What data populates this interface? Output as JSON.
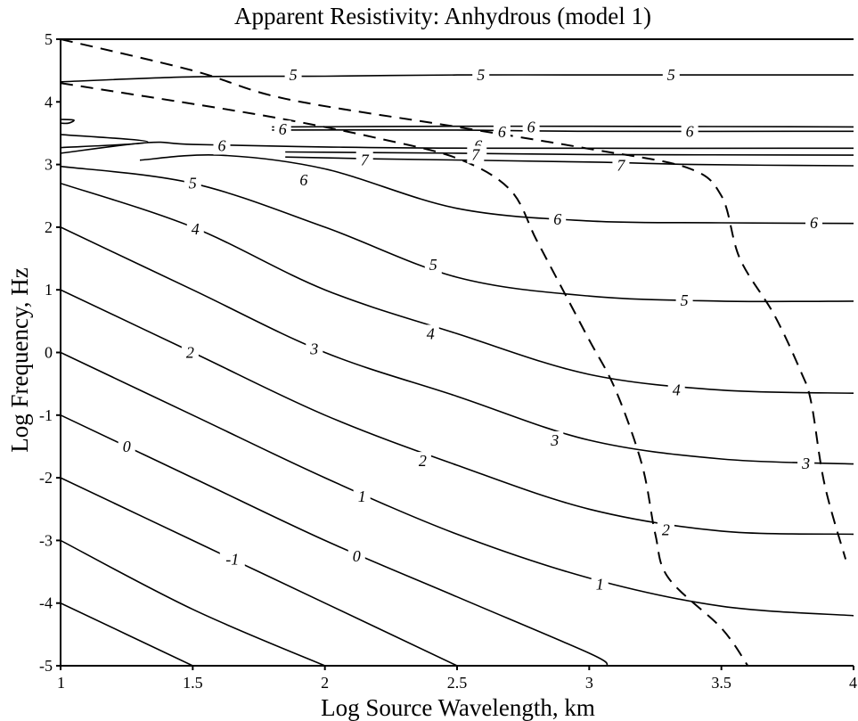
{
  "chart_data": {
    "type": "contour",
    "title": "Apparent Resistivity: Anhydrous (model 1)",
    "xlabel": "Log Source Wavelength, km",
    "ylabel": "Log Frequency, Hz",
    "xlim": [
      1,
      4
    ],
    "ylim": [
      -5,
      5
    ],
    "xticks": [
      1,
      1.5,
      2,
      2.5,
      3,
      3.5,
      4
    ],
    "xtick_labels": [
      "1",
      "1.5",
      "2",
      "2.5",
      "3",
      "3.5",
      "4"
    ],
    "yticks": [
      5,
      4,
      3,
      2,
      1,
      0,
      -1,
      -2,
      -3,
      -4,
      -5
    ],
    "ytick_labels": [
      "5",
      "4",
      "3",
      "2",
      "1",
      "0",
      "-1",
      "-2",
      "-3",
      "-4",
      "-5"
    ],
    "grid": false,
    "contours": [
      {
        "level": "-1",
        "points": [
          [
            1,
            -4
          ],
          [
            1.5,
            -5
          ]
        ]
      },
      {
        "level": "-1",
        "points": [
          [
            1,
            -3
          ],
          [
            1.5,
            -4.1
          ],
          [
            2,
            -5
          ]
        ]
      },
      {
        "level": "-1",
        "points": [
          [
            1,
            -2
          ],
          [
            1.5,
            -3
          ],
          [
            2,
            -4
          ],
          [
            2.5,
            -5
          ]
        ]
      },
      {
        "level": "0",
        "points": [
          [
            1,
            -1
          ],
          [
            1.5,
            -2
          ],
          [
            2,
            -3
          ],
          [
            2.5,
            -3.9
          ],
          [
            3,
            -4.8
          ],
          [
            3.07,
            -5
          ]
        ]
      },
      {
        "level": "1",
        "points": [
          [
            1,
            0
          ],
          [
            1.5,
            -1
          ],
          [
            2,
            -2
          ],
          [
            2.5,
            -2.9
          ],
          [
            3,
            -3.6
          ],
          [
            3.5,
            -4.05
          ],
          [
            4,
            -4.2
          ]
        ]
      },
      {
        "level": "2",
        "points": [
          [
            1,
            1
          ],
          [
            1.5,
            0
          ],
          [
            2,
            -1
          ],
          [
            2.5,
            -1.8
          ],
          [
            3,
            -2.5
          ],
          [
            3.5,
            -2.85
          ],
          [
            4,
            -2.9
          ]
        ]
      },
      {
        "level": "3",
        "points": [
          [
            1,
            2
          ],
          [
            1.5,
            1
          ],
          [
            2,
            0
          ],
          [
            2.5,
            -0.7
          ],
          [
            3,
            -1.4
          ],
          [
            3.5,
            -1.7
          ],
          [
            4,
            -1.78
          ]
        ]
      },
      {
        "level": "4",
        "points": [
          [
            1,
            2.7
          ],
          [
            1.5,
            2
          ],
          [
            2,
            1
          ],
          [
            2.5,
            0.3
          ],
          [
            3,
            -0.35
          ],
          [
            3.5,
            -0.6
          ],
          [
            4,
            -0.65
          ]
        ]
      },
      {
        "level": "5",
        "points": [
          [
            1,
            2.97
          ],
          [
            1.5,
            2.7
          ],
          [
            2,
            2
          ],
          [
            2.5,
            1.2
          ],
          [
            3,
            0.9
          ],
          [
            3.5,
            0.82
          ],
          [
            4,
            0.82
          ]
        ]
      },
      {
        "level": "6",
        "points": [
          [
            1.3,
            3.07
          ],
          [
            1.6,
            3.15
          ],
          [
            2,
            2.93
          ],
          [
            2.5,
            2.3
          ],
          [
            3,
            2.1
          ],
          [
            3.5,
            2.07
          ],
          [
            4,
            2.06
          ]
        ]
      },
      {
        "level": "6",
        "points": [
          [
            1,
            3.18
          ],
          [
            1.33,
            3.35
          ],
          [
            1.5,
            3.32
          ],
          [
            2,
            3.28
          ],
          [
            2.6,
            3.26
          ],
          [
            4,
            3.26
          ]
        ]
      },
      {
        "level": "6",
        "points": [
          [
            1,
            3.48
          ],
          [
            1.33,
            3.36
          ],
          [
            1,
            3.27
          ]
        ]
      },
      {
        "level": "6",
        "points": [
          [
            1.8,
            3.55
          ],
          [
            2.5,
            3.55
          ],
          [
            3,
            3.53
          ],
          [
            4,
            3.53
          ]
        ]
      },
      {
        "level": "6",
        "points": [
          [
            1.8,
            3.6
          ],
          [
            2.5,
            3.61
          ],
          [
            3,
            3.61
          ],
          [
            4,
            3.6
          ]
        ]
      },
      {
        "level": "7",
        "points": [
          [
            1.85,
            3.12
          ],
          [
            2.2,
            3.09
          ],
          [
            3,
            3.04
          ],
          [
            3.4,
            3.0
          ],
          [
            4,
            2.98
          ]
        ]
      },
      {
        "level": "7",
        "points": [
          [
            1.85,
            3.2
          ],
          [
            2.5,
            3.18
          ],
          [
            3,
            3.16
          ],
          [
            4,
            3.15
          ]
        ]
      },
      {
        "level": "5",
        "points": [
          [
            1,
            4.32
          ],
          [
            1.5,
            4.4
          ],
          [
            2,
            4.41
          ],
          [
            2.5,
            4.43
          ],
          [
            3,
            4.43
          ],
          [
            3.5,
            4.43
          ],
          [
            4,
            4.43
          ]
        ]
      },
      {
        "level": "",
        "points": [
          [
            1,
            3.72
          ],
          [
            1.05,
            3.71
          ],
          [
            1.03,
            3.66
          ],
          [
            1,
            3.66
          ]
        ]
      }
    ],
    "dashed_boundaries": [
      {
        "points": [
          [
            1,
            5
          ],
          [
            1.5,
            4.5
          ],
          [
            1.85,
            4.05
          ],
          [
            2.5,
            3.6
          ],
          [
            3,
            3.25
          ],
          [
            3.37,
            2.95
          ],
          [
            3.5,
            2.5
          ],
          [
            3.57,
            1.5
          ],
          [
            3.7,
            0.6
          ],
          [
            3.8,
            -0.3
          ],
          [
            3.84,
            -0.8
          ],
          [
            3.89,
            -2.1
          ],
          [
            3.97,
            -3.3
          ]
        ]
      },
      {
        "points": [
          [
            1,
            4.3
          ],
          [
            1.6,
            3.9
          ],
          [
            1.9,
            3.68
          ],
          [
            2.2,
            3.42
          ],
          [
            2.5,
            3.1
          ],
          [
            2.7,
            2.6
          ],
          [
            2.8,
            1.8
          ],
          [
            2.9,
            1.0
          ],
          [
            3.0,
            0.2
          ],
          [
            3.1,
            -0.6
          ],
          [
            3.2,
            -1.8
          ],
          [
            3.25,
            -2.9
          ],
          [
            3.3,
            -3.6
          ],
          [
            3.5,
            -4.4
          ],
          [
            3.6,
            -5
          ]
        ]
      }
    ],
    "contour_labels": [
      {
        "text": "5",
        "x": 1.88,
        "y": 4.43
      },
      {
        "text": "5",
        "x": 2.59,
        "y": 4.43
      },
      {
        "text": "5",
        "x": 3.31,
        "y": 4.43
      },
      {
        "text": "6",
        "x": 1.84,
        "y": 3.56
      },
      {
        "text": "6",
        "x": 2.67,
        "y": 3.52
      },
      {
        "text": "6",
        "x": 2.78,
        "y": 3.6
      },
      {
        "text": "6",
        "x": 3.38,
        "y": 3.53
      },
      {
        "text": "6",
        "x": 2.58,
        "y": 3.3
      },
      {
        "text": "6",
        "x": 1.61,
        "y": 3.3
      },
      {
        "text": "7",
        "x": 2.57,
        "y": 3.16
      },
      {
        "text": "7",
        "x": 2.15,
        "y": 3.07
      },
      {
        "text": "7",
        "x": 3.12,
        "y": 2.99
      },
      {
        "text": "6",
        "x": 1.92,
        "y": 2.75
      },
      {
        "text": "6",
        "x": 2.88,
        "y": 2.13
      },
      {
        "text": "6",
        "x": 3.85,
        "y": 2.07
      },
      {
        "text": "5",
        "x": 1.5,
        "y": 2.7
      },
      {
        "text": "5",
        "x": 2.41,
        "y": 1.4
      },
      {
        "text": "5",
        "x": 3.36,
        "y": 0.83
      },
      {
        "text": "4",
        "x": 1.51,
        "y": 1.97
      },
      {
        "text": "4",
        "x": 2.4,
        "y": 0.3
      },
      {
        "text": "4",
        "x": 3.33,
        "y": -0.6
      },
      {
        "text": "3",
        "x": 1.96,
        "y": 0.06
      },
      {
        "text": "3",
        "x": 2.87,
        "y": -1.4
      },
      {
        "text": "3",
        "x": 3.82,
        "y": -1.77
      },
      {
        "text": "2",
        "x": 1.49,
        "y": 0
      },
      {
        "text": "2",
        "x": 2.37,
        "y": -1.73
      },
      {
        "text": "2",
        "x": 3.29,
        "y": -2.83
      },
      {
        "text": "1",
        "x": 2.14,
        "y": -2.3
      },
      {
        "text": "1",
        "x": 3.04,
        "y": -3.7
      },
      {
        "text": "0",
        "x": 1.25,
        "y": -1.5
      },
      {
        "text": "0",
        "x": 2.12,
        "y": -3.25
      },
      {
        "text": "-1",
        "x": 1.65,
        "y": -3.3
      }
    ]
  }
}
